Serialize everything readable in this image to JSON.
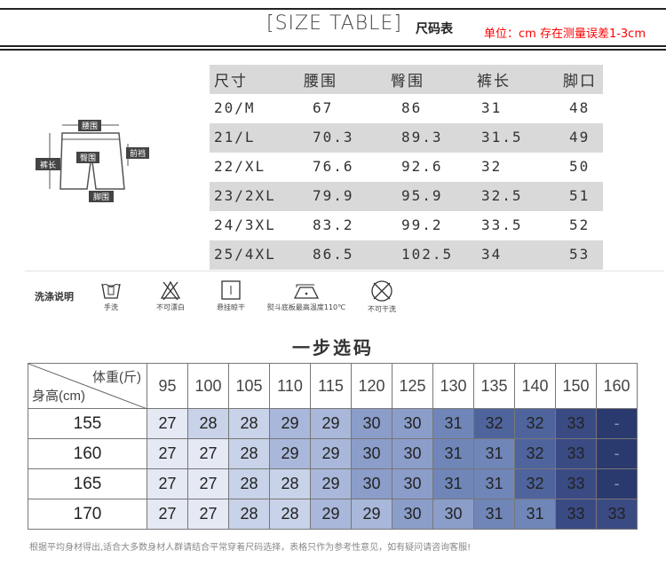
{
  "header": {
    "title_en": "[SIZE TABLE]",
    "title_cn": "尺码表",
    "unit_note": "单位：cm  存在测量误差1-3cm"
  },
  "size_table": {
    "columns": [
      "尺寸",
      "腰围",
      "臀围",
      "裤长",
      "脚口"
    ],
    "rows": [
      [
        "20/M",
        "67",
        "86",
        "31",
        "48"
      ],
      [
        "21/L",
        "70.3",
        "89.3",
        "31.5",
        "49"
      ],
      [
        "22/XL",
        "76.6",
        "92.6",
        "32",
        "50"
      ],
      [
        "23/2XL",
        "79.9",
        "95.9",
        "32.5",
        "51"
      ],
      [
        "24/3XL",
        "83.2",
        "99.2",
        "33.5",
        "52"
      ],
      [
        "25/4XL",
        "86.5",
        "102.5",
        "34",
        "53"
      ]
    ]
  },
  "diagram": {
    "labels": {
      "waist": "腰围",
      "hip": "臀围",
      "length": "裤长",
      "rise": "前裆",
      "hem": "脚围"
    }
  },
  "wash": {
    "title": "洗涤说明",
    "items": [
      {
        "icon": "hand-wash-icon",
        "label": "手洗"
      },
      {
        "icon": "no-bleach-icon",
        "label": "不可漂白"
      },
      {
        "icon": "hang-dry-icon",
        "label": "悬挂晾干"
      },
      {
        "icon": "iron-icon",
        "label": "熨斗底板最高温度110℃"
      },
      {
        "icon": "no-dry-clean-icon",
        "label": "不可干洗"
      }
    ]
  },
  "fit_guide": {
    "title": "一步选码",
    "weight_label": "体重(斤)",
    "height_label": "身高(cm)",
    "weights": [
      "95",
      "100",
      "105",
      "110",
      "115",
      "120",
      "125",
      "130",
      "135",
      "140",
      "150",
      "160"
    ],
    "rows": [
      {
        "height": "155",
        "sizes": [
          "27",
          "28",
          "28",
          "29",
          "29",
          "30",
          "30",
          "31",
          "32",
          "32",
          "33",
          "-"
        ]
      },
      {
        "height": "160",
        "sizes": [
          "27",
          "27",
          "28",
          "29",
          "29",
          "30",
          "30",
          "31",
          "31",
          "32",
          "33",
          "-"
        ]
      },
      {
        "height": "165",
        "sizes": [
          "27",
          "27",
          "28",
          "28",
          "29",
          "30",
          "30",
          "31",
          "31",
          "32",
          "33",
          "-"
        ]
      },
      {
        "height": "170",
        "sizes": [
          "27",
          "27",
          "28",
          "28",
          "29",
          "29",
          "30",
          "30",
          "31",
          "31",
          "33",
          "33"
        ]
      }
    ],
    "colors": {
      "27": "#e4e9f4",
      "28": "#c8d2e8",
      "29": "#a9b7da",
      "30": "#8b9dc9",
      "31": "#7086b8",
      "32": "#4f649d",
      "33": "#3a4b84",
      "-": "#2b3a6e"
    },
    "note": "根据平均身材得出,适合大多数身材人群请结合平常穿着尺码选择，表格只作为参考性意见，如有疑问请咨询客服!"
  }
}
